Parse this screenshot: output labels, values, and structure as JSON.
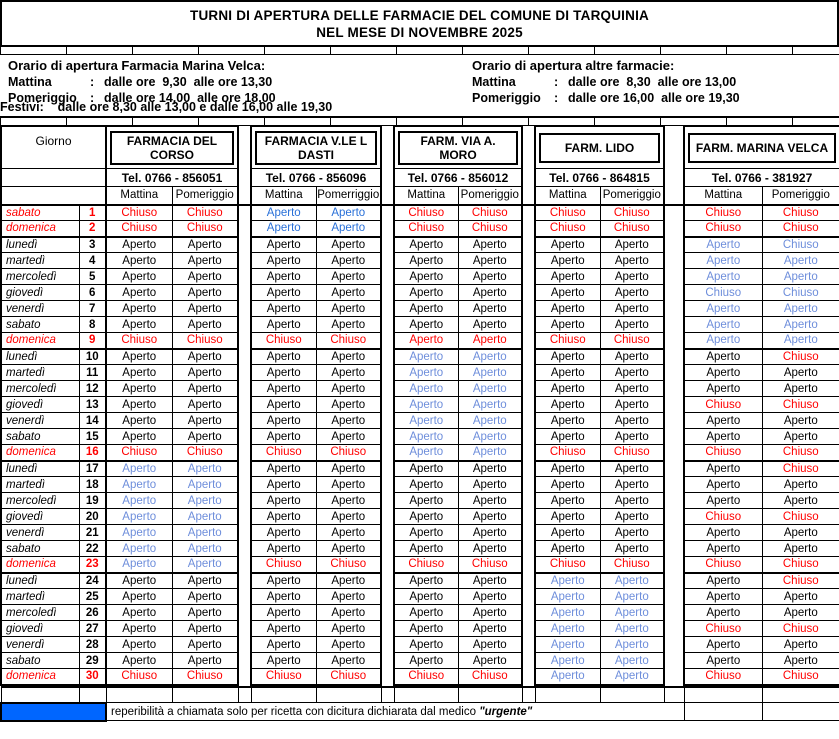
{
  "title": {
    "line1": "TURNI DI APERTURA DELLE FARMACIE DEL COMUNE DI TARQUINIA",
    "line2": "NEL MESE DI NOVEMBRE 2025"
  },
  "hours": {
    "left": {
      "heading": "Orario di apertura Farmacia Marina Velca:",
      "rows": [
        {
          "label": "Mattina",
          "colon": ":",
          "value": "dalle ore  9,30  alle ore 13,30"
        },
        {
          "label": "Pomeriggio",
          "colon": ":",
          "value": "dalle ore 14,00  alle ore 18,00"
        }
      ],
      "festivi": "Festivi:    dalle ore 8,30 alle 13,00 e dalle 16,00 alle 19,30"
    },
    "right": {
      "heading": "Orario di apertura altre farmacie:",
      "rows": [
        {
          "label": "Mattina",
          "colon": ":",
          "value": "dalle ore  8,30  alle ore 13,00"
        },
        {
          "label": "Pomeriggio",
          "colon": ":",
          "value": "dalle ore 16,00  alle ore 19,30"
        }
      ]
    }
  },
  "table": {
    "giorno_label": "Giorno",
    "pharmacies": [
      {
        "name": "FARMACIA DEL CORSO",
        "tel": "Tel. 0766 - 856051",
        "cols": [
          "Mattina",
          "Pomeriggio"
        ]
      },
      {
        "name": "FARMACIA V.LE L DASTI",
        "tel": "Tel. 0766 - 856096",
        "cols": [
          "Mattina",
          "Pomerriggio"
        ]
      },
      {
        "name": "FARM. VIA A. MORO",
        "tel": "Tel. 0766 - 856012",
        "cols": [
          "Mattina",
          "Pomeriggio"
        ]
      },
      {
        "name": "FARM. LIDO",
        "tel": "Tel. 0766 - 864815",
        "cols": [
          "Mattina",
          "Pomeriggio"
        ]
      },
      {
        "name": "FARM. MARINA VELCA",
        "tel": "Tel. 0766 - 381927",
        "cols": [
          "Mattina",
          "Pomeriggio"
        ]
      }
    ],
    "cell_words": {
      "A": "Aperto",
      "C": "Chiuso"
    },
    "colors": {
      "k": "#000000",
      "r": "#FF0000",
      "b": "#2970D8",
      "l": "#6E8EDB",
      "legend_blue": "#0066FF"
    },
    "days": [
      {
        "name": "sabato",
        "num": 1,
        "holiday": true,
        "cells": [
          "C-r",
          "C-r",
          "A-b",
          "A-b",
          "C-r",
          "C-r",
          "C-r",
          "C-r",
          "C-r",
          "C-r"
        ]
      },
      {
        "name": "domenica",
        "num": 2,
        "holiday": true,
        "cells": [
          "C-r",
          "C-r",
          "A-b",
          "A-b",
          "C-r",
          "C-r",
          "C-r",
          "C-r",
          "C-r",
          "C-r"
        ]
      },
      {
        "name": "lunedì",
        "num": 3,
        "holiday": false,
        "cells": [
          "A-k",
          "A-k",
          "A-k",
          "A-k",
          "A-k",
          "A-k",
          "A-k",
          "A-k",
          "A-l",
          "C-l"
        ]
      },
      {
        "name": "martedì",
        "num": 4,
        "holiday": false,
        "cells": [
          "A-k",
          "A-k",
          "A-k",
          "A-k",
          "A-k",
          "A-k",
          "A-k",
          "A-k",
          "A-l",
          "A-l"
        ]
      },
      {
        "name": "mercoledì",
        "num": 5,
        "holiday": false,
        "cells": [
          "A-k",
          "A-k",
          "A-k",
          "A-k",
          "A-k",
          "A-k",
          "A-k",
          "A-k",
          "A-l",
          "A-l"
        ]
      },
      {
        "name": "giovedì",
        "num": 6,
        "holiday": false,
        "cells": [
          "A-k",
          "A-k",
          "A-k",
          "A-k",
          "A-k",
          "A-k",
          "A-k",
          "A-k",
          "C-l",
          "C-l"
        ]
      },
      {
        "name": "venerdì",
        "num": 7,
        "holiday": false,
        "cells": [
          "A-k",
          "A-k",
          "A-k",
          "A-k",
          "A-k",
          "A-k",
          "A-k",
          "A-k",
          "A-l",
          "A-l"
        ]
      },
      {
        "name": "sabato",
        "num": 8,
        "holiday": false,
        "cells": [
          "A-k",
          "A-k",
          "A-k",
          "A-k",
          "A-k",
          "A-k",
          "A-k",
          "A-k",
          "A-l",
          "A-l"
        ]
      },
      {
        "name": "domenica",
        "num": 9,
        "holiday": true,
        "cells": [
          "C-r",
          "C-r",
          "C-r",
          "C-r",
          "A-r",
          "A-r",
          "C-r",
          "C-r",
          "A-l",
          "A-l"
        ]
      },
      {
        "name": "lunedì",
        "num": 10,
        "holiday": false,
        "cells": [
          "A-k",
          "A-k",
          "A-k",
          "A-k",
          "A-l",
          "A-l",
          "A-k",
          "A-k",
          "A-k",
          "C-r"
        ]
      },
      {
        "name": "martedì",
        "num": 11,
        "holiday": false,
        "cells": [
          "A-k",
          "A-k",
          "A-k",
          "A-k",
          "A-l",
          "A-l",
          "A-k",
          "A-k",
          "A-k",
          "A-k"
        ]
      },
      {
        "name": "mercoledì",
        "num": 12,
        "holiday": false,
        "cells": [
          "A-k",
          "A-k",
          "A-k",
          "A-k",
          "A-l",
          "A-l",
          "A-k",
          "A-k",
          "A-k",
          "A-k"
        ]
      },
      {
        "name": "giovedì",
        "num": 13,
        "holiday": false,
        "cells": [
          "A-k",
          "A-k",
          "A-k",
          "A-k",
          "A-l",
          "A-l",
          "A-k",
          "A-k",
          "C-r",
          "C-r"
        ]
      },
      {
        "name": "venerdì",
        "num": 14,
        "holiday": false,
        "cells": [
          "A-k",
          "A-k",
          "A-k",
          "A-k",
          "A-l",
          "A-l",
          "A-k",
          "A-k",
          "A-k",
          "A-k"
        ]
      },
      {
        "name": "sabato",
        "num": 15,
        "holiday": false,
        "cells": [
          "A-k",
          "A-k",
          "A-k",
          "A-k",
          "A-l",
          "A-l",
          "A-k",
          "A-k",
          "A-k",
          "A-k"
        ]
      },
      {
        "name": "domenica",
        "num": 16,
        "holiday": true,
        "cells": [
          "C-r",
          "C-r",
          "C-r",
          "C-r",
          "A-l",
          "A-l",
          "C-r",
          "C-r",
          "C-r",
          "C-r"
        ]
      },
      {
        "name": "lunedì",
        "num": 17,
        "holiday": false,
        "cells": [
          "A-l",
          "A-l",
          "A-k",
          "A-k",
          "A-k",
          "A-k",
          "A-k",
          "A-k",
          "A-k",
          "C-r"
        ]
      },
      {
        "name": "martedì",
        "num": 18,
        "holiday": false,
        "cells": [
          "A-l",
          "A-l",
          "A-k",
          "A-k",
          "A-k",
          "A-k",
          "A-k",
          "A-k",
          "A-k",
          "A-k"
        ]
      },
      {
        "name": "mercoledì",
        "num": 19,
        "holiday": false,
        "cells": [
          "A-l",
          "A-l",
          "A-k",
          "A-k",
          "A-k",
          "A-k",
          "A-k",
          "A-k",
          "A-k",
          "A-k"
        ]
      },
      {
        "name": "giovedì",
        "num": 20,
        "holiday": false,
        "cells": [
          "A-l",
          "A-l",
          "A-k",
          "A-k",
          "A-k",
          "A-k",
          "A-k",
          "A-k",
          "C-r",
          "C-r"
        ]
      },
      {
        "name": "venerdì",
        "num": 21,
        "holiday": false,
        "cells": [
          "A-l",
          "A-l",
          "A-k",
          "A-k",
          "A-k",
          "A-k",
          "A-k",
          "A-k",
          "A-k",
          "A-k"
        ]
      },
      {
        "name": "sabato",
        "num": 22,
        "holiday": false,
        "cells": [
          "A-l",
          "A-l",
          "A-k",
          "A-k",
          "A-k",
          "A-k",
          "A-k",
          "A-k",
          "A-k",
          "A-k"
        ]
      },
      {
        "name": "domenica",
        "num": 23,
        "holiday": true,
        "cells": [
          "A-l",
          "A-l",
          "C-r",
          "C-r",
          "C-r",
          "C-r",
          "C-r",
          "C-r",
          "C-r",
          "C-r"
        ]
      },
      {
        "name": "lunedì",
        "num": 24,
        "holiday": false,
        "cells": [
          "A-k",
          "A-k",
          "A-k",
          "A-k",
          "A-k",
          "A-k",
          "A-l",
          "A-l",
          "A-k",
          "C-r"
        ]
      },
      {
        "name": "martedì",
        "num": 25,
        "holiday": false,
        "cells": [
          "A-k",
          "A-k",
          "A-k",
          "A-k",
          "A-k",
          "A-k",
          "A-l",
          "A-l",
          "A-k",
          "A-k"
        ]
      },
      {
        "name": "mercoledì",
        "num": 26,
        "holiday": false,
        "cells": [
          "A-k",
          "A-k",
          "A-k",
          "A-k",
          "A-k",
          "A-k",
          "A-l",
          "A-l",
          "A-k",
          "A-k"
        ]
      },
      {
        "name": "giovedì",
        "num": 27,
        "holiday": false,
        "cells": [
          "A-k",
          "A-k",
          "A-k",
          "A-k",
          "A-k",
          "A-k",
          "A-l",
          "A-l",
          "C-r",
          "C-r"
        ]
      },
      {
        "name": "venerdì",
        "num": 28,
        "holiday": false,
        "cells": [
          "A-k",
          "A-k",
          "A-k",
          "A-k",
          "A-k",
          "A-k",
          "A-l",
          "A-l",
          "A-k",
          "A-k"
        ]
      },
      {
        "name": "sabato",
        "num": 29,
        "holiday": false,
        "cells": [
          "A-k",
          "A-k",
          "A-k",
          "A-k",
          "A-k",
          "A-k",
          "A-l",
          "A-l",
          "A-k",
          "A-k"
        ]
      },
      {
        "name": "domenica",
        "num": 30,
        "holiday": true,
        "cells": [
          "C-r",
          "C-r",
          "C-r",
          "C-r",
          "C-r",
          "C-r",
          "A-l",
          "A-l",
          "C-r",
          "C-r"
        ]
      }
    ]
  },
  "footer": {
    "note_prefix": "reperibilità a chiamata solo per ricetta con dicitura dichiarata dal medico ",
    "note_word": "\"urgente\""
  }
}
